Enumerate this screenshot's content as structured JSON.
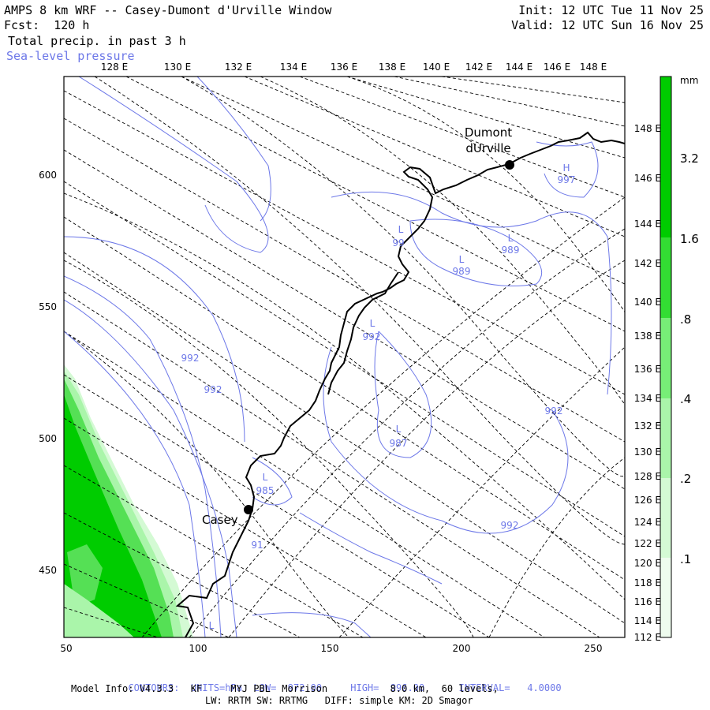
{
  "header": {
    "title": "AMPS 8 km WRF -- Casey-Dumont d'Urville Window",
    "fcst": "Fcst:  120 h",
    "field1": "Total precip. in past 3 h",
    "field2": "Sea-level pressure",
    "init": "Init: 12 UTC Tue 11 Nov 25",
    "valid": "Valid: 12 UTC Sun 16 Nov 25"
  },
  "map": {
    "lon_labels_top": [
      "128 E",
      "130 E",
      "132 E",
      "134 E",
      "136 E",
      "138 E",
      "140 E",
      "142 E",
      "144 E",
      "146 E",
      "148 E"
    ],
    "lon_labels_right": [
      "148 E",
      "146 E",
      "144 E",
      "142 E",
      "140 E",
      "138 E",
      "136 E",
      "134 E",
      "132 E",
      "130 E",
      "128 E",
      "126 E",
      "124 E",
      "122 E",
      "120 E",
      "118 E",
      "116 E",
      "114 E",
      "112 E"
    ],
    "y_ticks": [
      "600",
      "550",
      "500",
      "450"
    ],
    "x_ticks": [
      "50",
      "100",
      "150",
      "200",
      "250"
    ],
    "places": [
      {
        "name_line1": "Dumont",
        "name_line2": "dUrville"
      },
      {
        "name_line1": "Casey",
        "name_line2": ""
      }
    ],
    "pressure_labels": [
      {
        "letter": "H",
        "value": "997"
      },
      {
        "letter": "L",
        "value": "989"
      },
      {
        "letter": "L",
        "value": "989"
      },
      {
        "letter": "L",
        "value": "99"
      },
      {
        "letter": "L",
        "value": "992"
      },
      {
        "letter": "L",
        "value": "987"
      },
      {
        "letter": "L",
        "value": "985"
      },
      {
        "letter": "",
        "value": "992"
      },
      {
        "letter": "",
        "value": "992"
      },
      {
        "letter": "",
        "value": "992"
      },
      {
        "letter": "",
        "value": "992"
      },
      {
        "letter": "",
        "value": "91"
      },
      {
        "letter": "L",
        "value": ""
      }
    ]
  },
  "colorbar": {
    "unit": "mm",
    "labels": [
      "3.2",
      "1.6",
      ".8",
      ".4",
      ".2",
      ".1"
    ],
    "colors": [
      "#00cc00",
      "#33dd33",
      "#77ee77",
      "#aaf5aa",
      "#d4fad4",
      "#eefcee",
      "#ffffff"
    ]
  },
  "footer": {
    "contours_label": "CONTOURS:",
    "units": "UNITS=hPa",
    "low": "LOW=  972.00",
    "high": "HIGH=  996.00",
    "interval": "INTERVAL=   4.0000",
    "model_info": "Model Info: V4.3.3   KF     MYJ PBL  Morrison           8.0 km,  60 levels,",
    "physics": "LW: RRTM SW: RRTMG   DIFF: simple KM: 2D Smagor"
  },
  "colors": {
    "contour": "#6d78e8",
    "coast": "#000000",
    "precip": "#00cc00"
  }
}
